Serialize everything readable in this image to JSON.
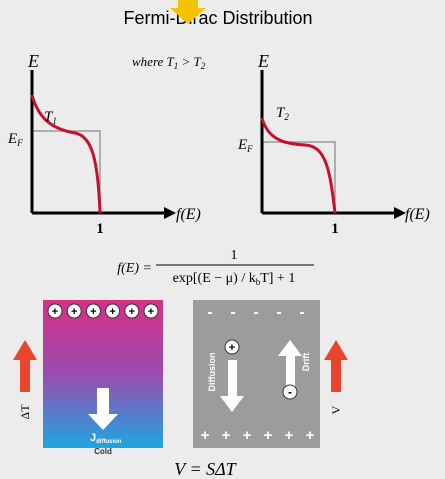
{
  "title": "Fermi-Dirac Distribution",
  "condition": {
    "a": "where T",
    "a_sub": "1",
    "b": " > T",
    "b_sub": "2"
  },
  "graph_hot": {
    "y_label": "E",
    "level": "E",
    "level_sub": "F",
    "curve": "T",
    "curve_sub": "1",
    "x_label": "f(E)",
    "x_tick": "1"
  },
  "graph_cold": {
    "y_label": "E",
    "level": "E",
    "level_sub": "F",
    "curve": "T",
    "curve_sub": "2",
    "x_label": "f(E)",
    "x_tick": "1"
  },
  "formula": {
    "lhs": "f(E) =",
    "numerator": "1",
    "denominator": "exp[(E − μ) / k",
    "denominator_sub": "b",
    "denominator_end": "T] + 1"
  },
  "thermal_panel": {
    "top_charges": [
      "+",
      "+",
      "+",
      "+",
      "+",
      "+"
    ],
    "gradient": "ΔT",
    "flux": "J",
    "flux_sub": "diffusion",
    "cold": "Cold"
  },
  "voltage_panel": {
    "top_charges": [
      "-",
      "-",
      "-",
      "-",
      "-"
    ],
    "bottom_charges": [
      "+",
      "+",
      "+",
      "+",
      "+",
      "+"
    ],
    "diffusion": "Diffusion",
    "drift": "Drift",
    "hole": "+",
    "electron": "-",
    "voltage": "V"
  },
  "equation": "V = SΔT"
}
